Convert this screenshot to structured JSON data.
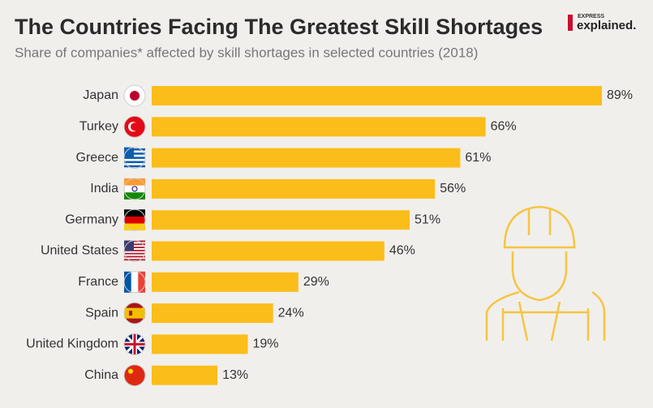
{
  "chart_data": {
    "type": "bar",
    "orientation": "horizontal",
    "title": "The Countries Facing The Greatest Skill Shortages",
    "subtitle": "Share of companies* affected by skill shortages in selected countries (2018)",
    "categories": [
      "Japan",
      "Turkey",
      "Greece",
      "India",
      "Germany",
      "United States",
      "France",
      "Spain",
      "United Kingdom",
      "China"
    ],
    "values": [
      89,
      66,
      61,
      56,
      51,
      46,
      29,
      24,
      19,
      13
    ],
    "value_labels": [
      "89%",
      "66%",
      "61%",
      "56%",
      "51%",
      "46%",
      "29%",
      "24%",
      "19%",
      "13%"
    ],
    "color": "#fbbd19"
  },
  "logo": {
    "small": "EXPRESS",
    "main": "explained."
  }
}
